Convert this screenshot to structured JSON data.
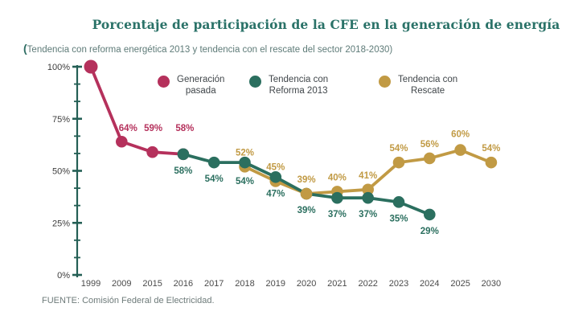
{
  "header": {
    "title": "Porcentaje de participación de la CFE en la generación de energía",
    "subtitle_open": "(",
    "subtitle": "Tendencia con reforma energética 2013 y tendencia con el rescate del sector 2018-2030)"
  },
  "legend": [
    {
      "line1": "Generación",
      "line2": "pasada",
      "color": "#b5315c"
    },
    {
      "line1": "Tendencia con",
      "line2": "Reforma 2013",
      "color": "#2b6f5f"
    },
    {
      "line1": "Tendencia con",
      "line2": "Rescate",
      "color": "#c19a44"
    }
  ],
  "footer": {
    "source": "FUENTE: Comisión Federal de Electricidad."
  },
  "chart_data": {
    "type": "line",
    "title": "Porcentaje de participación de la CFE en la generación de energía",
    "subtitle": "(Tendencia con reforma energética 2013 y tendencia con el rescate del sector 2018-2030)",
    "xlabel": "",
    "ylabel": "",
    "ylim": [
      0,
      100
    ],
    "grid": false,
    "legend_position": "top",
    "x_categories": [
      "1999",
      "2009",
      "2015",
      "2016",
      "2017",
      "2018",
      "2019",
      "2020",
      "2021",
      "2022",
      "2023",
      "2024",
      "2025",
      "2030"
    ],
    "y_ticks": [
      "100%",
      "75%",
      "50%",
      "25%",
      "0%"
    ],
    "colors": {
      "axis": "#245f55"
    },
    "series": [
      {
        "id": "generacion-pasada",
        "name": "Generación pasada",
        "color": "#b5315c",
        "label_dy": -14,
        "points": [
          {
            "x": "1999",
            "value": 100,
            "r": 8.5
          },
          {
            "x": "2009",
            "value": 64,
            "label": "64%",
            "label_dy": -13,
            "label_dx": 8
          },
          {
            "x": "2015",
            "value": 59,
            "label": "59%",
            "label_dy": -26,
            "label_dx": 1
          },
          {
            "x": "2016",
            "value": 58,
            "label": "58%",
            "label_dy": -29,
            "label_dx": 2
          }
        ]
      },
      {
        "id": "tendencia-rescate",
        "name": "Tendencia con Rescate",
        "color": "#c19a44",
        "label_dy": -14,
        "points": [
          {
            "x": "2018",
            "value": 52,
            "label": "52%"
          },
          {
            "x": "2019",
            "value": 45,
            "label": "45%"
          },
          {
            "x": "2020",
            "value": 39,
            "label": "39%"
          },
          {
            "x": "2021",
            "value": 40,
            "label": "40%"
          },
          {
            "x": "2022",
            "value": 41,
            "label": "41%"
          },
          {
            "x": "2023",
            "value": 54,
            "label": "54%"
          },
          {
            "x": "2024",
            "value": 56,
            "label": "56%"
          },
          {
            "x": "2025",
            "value": 60,
            "label": "60%",
            "label_dy": -16
          },
          {
            "x": "2030",
            "value": 54,
            "label": "54%"
          }
        ]
      },
      {
        "id": "tendencia-reforma-2013",
        "name": "Tendencia con Reforma 2013",
        "color": "#2b6f5f",
        "label_dy": 24,
        "points": [
          {
            "x": "2016",
            "value": 58,
            "label": "58%"
          },
          {
            "x": "2017",
            "value": 54,
            "label": "54%"
          },
          {
            "x": "2018",
            "value": 54,
            "label": "54%",
            "label_dy": 27
          },
          {
            "x": "2019",
            "value": 47,
            "label": "47%"
          },
          {
            "x": "2020",
            "value": 39,
            "label": "39%"
          },
          {
            "x": "2021",
            "value": 37,
            "label": "37%"
          },
          {
            "x": "2022",
            "value": 37,
            "label": "37%"
          },
          {
            "x": "2023",
            "value": 35,
            "label": "35%"
          },
          {
            "x": "2024",
            "value": 29,
            "label": "29%"
          }
        ]
      }
    ],
    "top_point": {
      "series": 1,
      "point": 2
    }
  }
}
